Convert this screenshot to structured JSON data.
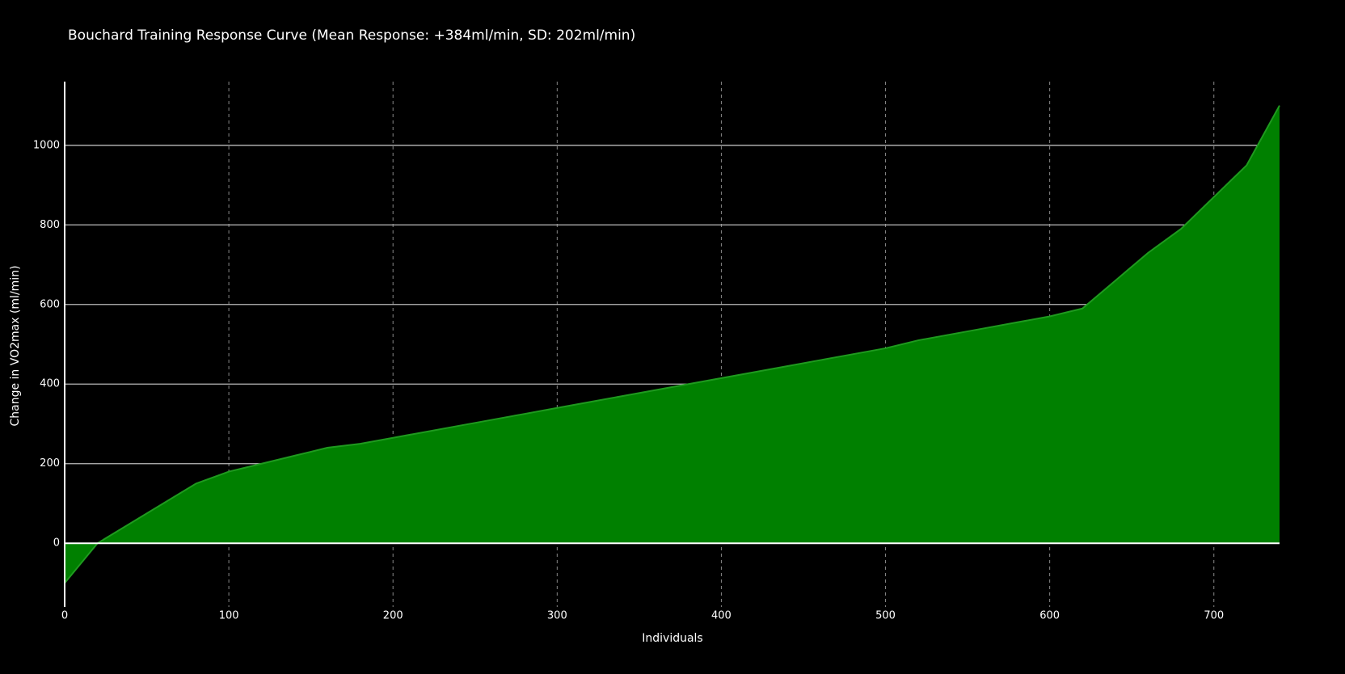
{
  "chart_data": {
    "type": "area",
    "title": "Bouchard Training Response Curve (Mean Response: +384ml/min, SD: 202ml/min)",
    "xlabel": "Individuals",
    "ylabel": "Change in VO2max (ml/min)",
    "x": [
      0,
      20,
      40,
      60,
      80,
      100,
      120,
      140,
      160,
      180,
      200,
      220,
      240,
      260,
      280,
      300,
      320,
      340,
      360,
      380,
      400,
      420,
      440,
      460,
      480,
      500,
      520,
      540,
      560,
      580,
      600,
      620,
      640,
      660,
      680,
      700,
      720,
      740
    ],
    "values": [
      -100,
      0,
      50,
      100,
      150,
      180,
      200,
      220,
      240,
      250,
      265,
      280,
      295,
      310,
      325,
      340,
      355,
      370,
      385,
      400,
      415,
      430,
      445,
      460,
      475,
      490,
      510,
      525,
      540,
      555,
      570,
      590,
      660,
      730,
      790,
      870,
      950,
      1100
    ],
    "color": "#008000",
    "xlim": [
      0,
      740
    ],
    "ylim": [
      -160,
      1160
    ],
    "xticks": [
      0,
      100,
      200,
      300,
      400,
      500,
      600,
      700
    ],
    "yticks": [
      0,
      200,
      400,
      600,
      800,
      1000
    ],
    "grid": true
  }
}
